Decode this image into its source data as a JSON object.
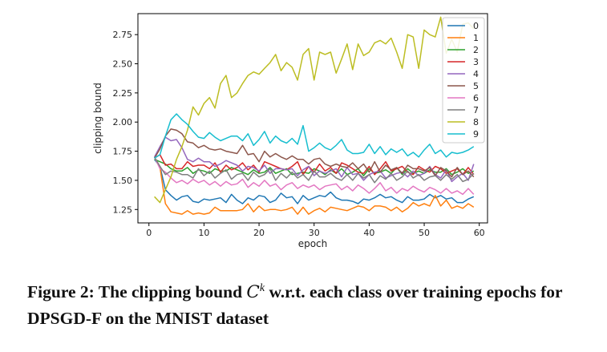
{
  "chart_data": {
    "type": "line",
    "title": "",
    "xlabel": "epoch",
    "ylabel": "clipping bound",
    "xlim": [
      -2,
      61.5
    ],
    "ylim": [
      1.135,
      2.93
    ],
    "xticks": [
      0,
      10,
      20,
      30,
      40,
      50,
      60
    ],
    "yticks": [
      1.25,
      1.5,
      1.75,
      2.0,
      2.25,
      2.5,
      2.75
    ],
    "ytick_labels": [
      "1.25",
      "1.50",
      "1.75",
      "2.00",
      "2.25",
      "2.50",
      "2.75"
    ],
    "legend_position": "upper-right",
    "grid": false,
    "x": [
      1,
      2,
      3,
      4,
      5,
      6,
      7,
      8,
      9,
      10,
      11,
      12,
      13,
      14,
      15,
      16,
      17,
      18,
      19,
      20,
      21,
      22,
      23,
      24,
      25,
      26,
      27,
      28,
      29,
      30,
      31,
      32,
      33,
      34,
      35,
      36,
      37,
      38,
      39,
      40,
      41,
      42,
      43,
      44,
      45,
      46,
      47,
      48,
      49,
      50,
      51,
      52,
      53,
      54,
      55,
      56,
      57,
      58,
      59
    ],
    "series": [
      {
        "name": "0",
        "color": "#1f77b4",
        "values": [
          1.68,
          1.62,
          1.42,
          1.37,
          1.33,
          1.36,
          1.37,
          1.32,
          1.31,
          1.34,
          1.33,
          1.34,
          1.35,
          1.31,
          1.38,
          1.33,
          1.3,
          1.35,
          1.33,
          1.37,
          1.36,
          1.31,
          1.33,
          1.39,
          1.35,
          1.36,
          1.3,
          1.37,
          1.33,
          1.35,
          1.37,
          1.36,
          1.4,
          1.35,
          1.33,
          1.33,
          1.32,
          1.3,
          1.34,
          1.33,
          1.35,
          1.38,
          1.35,
          1.36,
          1.33,
          1.31,
          1.36,
          1.33,
          1.33,
          1.34,
          1.38,
          1.35,
          1.37,
          1.34,
          1.35,
          1.31,
          1.31,
          1.34,
          1.36
        ]
      },
      {
        "name": "1",
        "color": "#ff7f0e",
        "values": [
          1.7,
          1.61,
          1.3,
          1.23,
          1.22,
          1.21,
          1.24,
          1.21,
          1.22,
          1.21,
          1.22,
          1.27,
          1.24,
          1.24,
          1.24,
          1.24,
          1.25,
          1.3,
          1.23,
          1.28,
          1.24,
          1.25,
          1.25,
          1.24,
          1.25,
          1.27,
          1.21,
          1.27,
          1.21,
          1.24,
          1.26,
          1.23,
          1.27,
          1.26,
          1.25,
          1.24,
          1.26,
          1.28,
          1.27,
          1.24,
          1.28,
          1.28,
          1.27,
          1.24,
          1.27,
          1.23,
          1.26,
          1.31,
          1.28,
          1.3,
          1.28,
          1.37,
          1.28,
          1.33,
          1.26,
          1.28,
          1.26,
          1.3,
          1.27
        ]
      },
      {
        "name": "2",
        "color": "#2ca02c",
        "values": [
          1.68,
          1.66,
          1.64,
          1.6,
          1.58,
          1.58,
          1.61,
          1.56,
          1.59,
          1.58,
          1.56,
          1.6,
          1.58,
          1.58,
          1.61,
          1.59,
          1.57,
          1.55,
          1.59,
          1.56,
          1.57,
          1.61,
          1.56,
          1.58,
          1.6,
          1.55,
          1.56,
          1.57,
          1.56,
          1.6,
          1.58,
          1.55,
          1.59,
          1.56,
          1.6,
          1.55,
          1.57,
          1.6,
          1.54,
          1.6,
          1.56,
          1.57,
          1.59,
          1.56,
          1.61,
          1.55,
          1.6,
          1.56,
          1.58,
          1.56,
          1.59,
          1.57,
          1.57,
          1.6,
          1.55,
          1.57,
          1.6,
          1.56,
          1.58
        ]
      },
      {
        "name": "3",
        "color": "#d62728",
        "values": [
          1.69,
          1.72,
          1.63,
          1.64,
          1.6,
          1.6,
          1.66,
          1.62,
          1.63,
          1.63,
          1.6,
          1.65,
          1.57,
          1.63,
          1.59,
          1.61,
          1.65,
          1.59,
          1.63,
          1.57,
          1.66,
          1.64,
          1.62,
          1.6,
          1.59,
          1.62,
          1.66,
          1.55,
          1.62,
          1.57,
          1.64,
          1.58,
          1.61,
          1.56,
          1.65,
          1.63,
          1.6,
          1.57,
          1.56,
          1.62,
          1.55,
          1.6,
          1.66,
          1.58,
          1.6,
          1.62,
          1.57,
          1.55,
          1.62,
          1.59,
          1.57,
          1.62,
          1.6,
          1.56,
          1.58,
          1.6,
          1.55,
          1.61,
          1.55
        ]
      },
      {
        "name": "4",
        "color": "#9467bd",
        "values": [
          1.7,
          1.79,
          1.87,
          1.84,
          1.85,
          1.78,
          1.68,
          1.66,
          1.69,
          1.66,
          1.66,
          1.62,
          1.64,
          1.67,
          1.65,
          1.63,
          1.58,
          1.62,
          1.61,
          1.58,
          1.63,
          1.56,
          1.6,
          1.6,
          1.59,
          1.6,
          1.54,
          1.59,
          1.62,
          1.54,
          1.58,
          1.56,
          1.58,
          1.6,
          1.53,
          1.61,
          1.55,
          1.56,
          1.5,
          1.55,
          1.57,
          1.58,
          1.52,
          1.54,
          1.56,
          1.57,
          1.53,
          1.58,
          1.54,
          1.56,
          1.62,
          1.55,
          1.52,
          1.59,
          1.49,
          1.53,
          1.56,
          1.5,
          1.64
        ]
      },
      {
        "name": "5",
        "color": "#8c564b",
        "values": [
          1.69,
          1.77,
          1.88,
          1.94,
          1.93,
          1.9,
          1.83,
          1.82,
          1.78,
          1.8,
          1.77,
          1.76,
          1.77,
          1.75,
          1.74,
          1.73,
          1.8,
          1.72,
          1.73,
          1.66,
          1.75,
          1.7,
          1.73,
          1.7,
          1.68,
          1.71,
          1.68,
          1.68,
          1.64,
          1.68,
          1.69,
          1.64,
          1.62,
          1.64,
          1.62,
          1.61,
          1.65,
          1.6,
          1.64,
          1.57,
          1.66,
          1.57,
          1.63,
          1.59,
          1.61,
          1.56,
          1.63,
          1.6,
          1.6,
          1.58,
          1.61,
          1.54,
          1.61,
          1.58,
          1.53,
          1.61,
          1.55,
          1.58,
          1.53
        ]
      },
      {
        "name": "6",
        "color": "#e377c2",
        "values": [
          1.7,
          1.6,
          1.57,
          1.52,
          1.48,
          1.5,
          1.47,
          1.51,
          1.48,
          1.5,
          1.46,
          1.49,
          1.45,
          1.49,
          1.46,
          1.47,
          1.51,
          1.44,
          1.48,
          1.45,
          1.5,
          1.45,
          1.47,
          1.42,
          1.46,
          1.48,
          1.43,
          1.46,
          1.44,
          1.46,
          1.42,
          1.45,
          1.46,
          1.47,
          1.42,
          1.45,
          1.41,
          1.46,
          1.43,
          1.39,
          1.43,
          1.48,
          1.41,
          1.44,
          1.39,
          1.43,
          1.41,
          1.45,
          1.42,
          1.4,
          1.44,
          1.42,
          1.39,
          1.43,
          1.39,
          1.41,
          1.38,
          1.43,
          1.38
        ]
      },
      {
        "name": "7",
        "color": "#7f7f7f",
        "values": [
          1.7,
          1.62,
          1.55,
          1.58,
          1.57,
          1.55,
          1.55,
          1.52,
          1.6,
          1.54,
          1.58,
          1.52,
          1.56,
          1.59,
          1.51,
          1.55,
          1.56,
          1.5,
          1.57,
          1.53,
          1.55,
          1.6,
          1.5,
          1.56,
          1.52,
          1.57,
          1.52,
          1.55,
          1.5,
          1.58,
          1.53,
          1.53,
          1.56,
          1.52,
          1.5,
          1.55,
          1.5,
          1.56,
          1.52,
          1.55,
          1.48,
          1.54,
          1.51,
          1.56,
          1.5,
          1.53,
          1.58,
          1.52,
          1.55,
          1.5,
          1.53,
          1.54,
          1.5,
          1.55,
          1.51,
          1.55,
          1.49,
          1.51,
          1.56
        ]
      },
      {
        "name": "8",
        "color": "#bcbd22",
        "values": [
          1.36,
          1.31,
          1.42,
          1.53,
          1.68,
          1.79,
          1.93,
          2.13,
          2.06,
          2.16,
          2.21,
          2.12,
          2.33,
          2.4,
          2.21,
          2.25,
          2.33,
          2.4,
          2.43,
          2.41,
          2.46,
          2.51,
          2.58,
          2.44,
          2.51,
          2.47,
          2.36,
          2.58,
          2.63,
          2.36,
          2.6,
          2.58,
          2.6,
          2.42,
          2.54,
          2.67,
          2.45,
          2.67,
          2.57,
          2.6,
          2.68,
          2.7,
          2.67,
          2.72,
          2.6,
          2.46,
          2.75,
          2.73,
          2.46,
          2.79,
          2.75,
          2.73,
          2.9,
          2.59,
          2.71,
          2.6,
          2.84,
          2.85,
          2.8
        ]
      },
      {
        "name": "9",
        "color": "#17becf",
        "values": [
          1.69,
          1.72,
          1.88,
          2.02,
          2.07,
          2.02,
          1.98,
          1.92,
          1.87,
          1.86,
          1.91,
          1.87,
          1.84,
          1.86,
          1.88,
          1.88,
          1.84,
          1.9,
          1.8,
          1.85,
          1.92,
          1.82,
          1.88,
          1.84,
          1.82,
          1.86,
          1.81,
          1.97,
          1.75,
          1.78,
          1.82,
          1.78,
          1.76,
          1.8,
          1.85,
          1.76,
          1.73,
          1.73,
          1.74,
          1.81,
          1.73,
          1.79,
          1.72,
          1.77,
          1.74,
          1.77,
          1.71,
          1.74,
          1.7,
          1.76,
          1.81,
          1.73,
          1.76,
          1.7,
          1.74,
          1.73,
          1.74,
          1.76,
          1.79
        ]
      }
    ]
  },
  "caption": {
    "prefix": "Figure 2: The clipping bound ",
    "symbol": "C",
    "superscript": "k",
    "suffix": " w.r.t. each class over training epochs for DPSGD-F on the MNIST dataset"
  }
}
